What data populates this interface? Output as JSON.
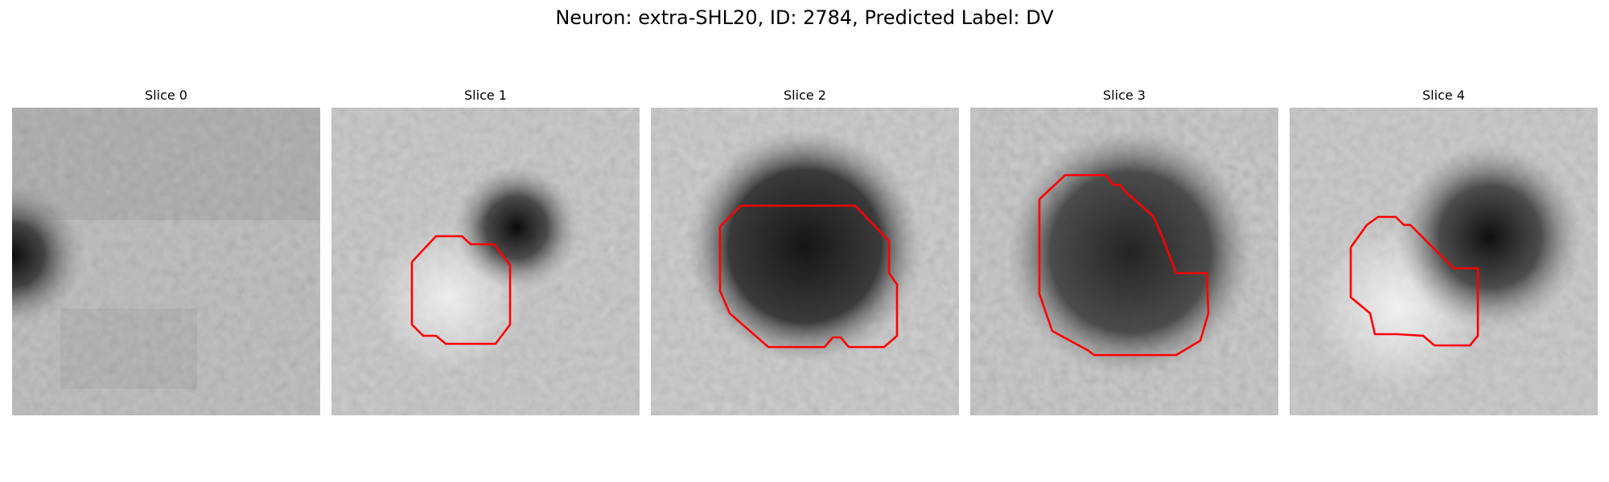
{
  "figure": {
    "title": "Neuron: extra-SHL20, ID: 2784, Predicted Label: DV"
  },
  "panels": [
    {
      "title": "Slice 0"
    },
    {
      "title": "Slice 1"
    },
    {
      "title": "Slice 2"
    },
    {
      "title": "Slice 3"
    },
    {
      "title": "Slice 4"
    }
  ],
  "colors": {
    "background": "#ffffff",
    "contour": "#ff0000",
    "colormap": "grayscale"
  }
}
